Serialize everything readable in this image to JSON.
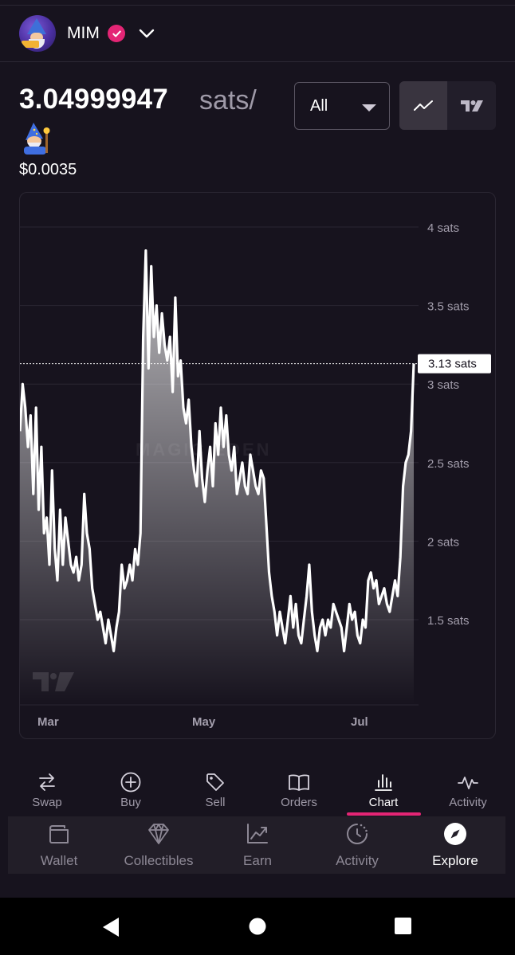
{
  "header": {
    "token_name": "MIM"
  },
  "price": {
    "value": "3.04999947",
    "unit": "sats/",
    "usd": "$0.0035"
  },
  "range": {
    "selected": "All"
  },
  "icons": {
    "verified": "verified-badge-icon",
    "dropdown": "chevron-down-icon",
    "line_chart": "line-chart-icon",
    "tradingview": "tradingview-icon",
    "wizard": "mage-emoji-icon"
  },
  "colors": {
    "accent": "#e42575",
    "background": "#17131e",
    "line": "#ffffff"
  },
  "chart_data": {
    "type": "area",
    "title": "",
    "xlabel": "",
    "ylabel": "",
    "x_tick_labels": [
      "Mar",
      "May",
      "Jul"
    ],
    "y_tick_labels": [
      "4 sats",
      "3.5 sats",
      "3 sats",
      "2.5 sats",
      "2 sats",
      "1.5 sats"
    ],
    "y_ticks": [
      4,
      3.5,
      3,
      2.5,
      2,
      1.5
    ],
    "ylim": [
      0.95,
      4.25
    ],
    "current_value": 3.13,
    "current_label": "3.13 sats",
    "watermark": "MAGIC EDEN",
    "series": [
      {
        "values": [
          2.7,
          3.0,
          2.85,
          2.6,
          2.8,
          2.3,
          2.85,
          2.2,
          2.6,
          2.05,
          2.15,
          1.85,
          2.45,
          1.95,
          1.75,
          2.2,
          1.85,
          2.15,
          2.0,
          1.85,
          1.8,
          1.9,
          1.75,
          1.85,
          2.3,
          2.05,
          1.95,
          1.7,
          1.6,
          1.5,
          1.55,
          1.45,
          1.35,
          1.5,
          1.4,
          1.3,
          1.45,
          1.55,
          1.85,
          1.7,
          1.75,
          1.85,
          1.75,
          1.95,
          1.85,
          2.05,
          3.3,
          3.85,
          3.1,
          3.75,
          3.3,
          3.5,
          3.2,
          3.45,
          3.25,
          3.15,
          3.3,
          2.95,
          3.55,
          3.05,
          3.15,
          2.85,
          2.75,
          2.9,
          2.6,
          2.45,
          2.35,
          2.7,
          2.4,
          2.25,
          2.45,
          2.6,
          2.35,
          2.75,
          2.55,
          2.85,
          2.6,
          2.8,
          2.55,
          2.45,
          2.6,
          2.3,
          2.4,
          2.5,
          2.35,
          2.3,
          2.55,
          2.45,
          2.35,
          2.3,
          2.45,
          2.4,
          2.1,
          1.8,
          1.65,
          1.55,
          1.4,
          1.55,
          1.45,
          1.35,
          1.5,
          1.65,
          1.45,
          1.6,
          1.4,
          1.35,
          1.5,
          1.65,
          1.85,
          1.55,
          1.4,
          1.3,
          1.45,
          1.5,
          1.4,
          1.5,
          1.45,
          1.6,
          1.55,
          1.5,
          1.45,
          1.3,
          1.45,
          1.6,
          1.5,
          1.55,
          1.4,
          1.35,
          1.5,
          1.45,
          1.75,
          1.8,
          1.7,
          1.75,
          1.6,
          1.65,
          1.7,
          1.6,
          1.55,
          1.65,
          1.75,
          1.65,
          1.9,
          2.35,
          2.5,
          2.55,
          2.7,
          3.13
        ]
      }
    ]
  },
  "subtabs": [
    {
      "label": "Swap"
    },
    {
      "label": "Buy"
    },
    {
      "label": "Sell"
    },
    {
      "label": "Orders"
    },
    {
      "label": "Chart"
    },
    {
      "label": "Activity"
    }
  ],
  "nav": [
    {
      "label": "Wallet"
    },
    {
      "label": "Collectibles"
    },
    {
      "label": "Earn"
    },
    {
      "label": "Activity"
    },
    {
      "label": "Explore"
    }
  ]
}
